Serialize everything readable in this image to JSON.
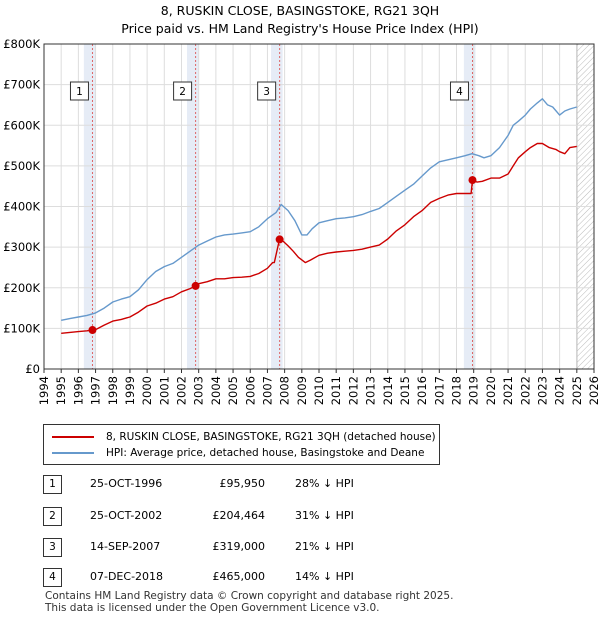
{
  "title": "8, RUSKIN CLOSE, BASINGSTOKE, RG21 3QH",
  "subtitle": "Price paid vs. HM Land Registry's House Price Index (HPI)",
  "chart_data": {
    "type": "line",
    "xlim": [
      1994,
      2026
    ],
    "ylim": [
      0,
      800000
    ],
    "x_ticks": [
      "1994",
      "1995",
      "1996",
      "1997",
      "1998",
      "1999",
      "2000",
      "2001",
      "2002",
      "2003",
      "2004",
      "2005",
      "2006",
      "2007",
      "2008",
      "2009",
      "2010",
      "2011",
      "2012",
      "2013",
      "2014",
      "2015",
      "2016",
      "2017",
      "2018",
      "2019",
      "2020",
      "2021",
      "2022",
      "2023",
      "2024",
      "2025",
      "2026"
    ],
    "y_ticks": [
      {
        "value": 0,
        "label": "£0"
      },
      {
        "value": 100000,
        "label": "£100K"
      },
      {
        "value": 200000,
        "label": "£200K"
      },
      {
        "value": 300000,
        "label": "£300K"
      },
      {
        "value": 400000,
        "label": "£400K"
      },
      {
        "value": 500000,
        "label": "£500K"
      },
      {
        "value": 600000,
        "label": "£600K"
      },
      {
        "value": 700000,
        "label": "£700K"
      },
      {
        "value": 800000,
        "label": "£800K"
      }
    ],
    "future_start": 2025.0,
    "series": [
      {
        "name": "8, RUSKIN CLOSE, BASINGSTOKE, RG21 3QH (detached house)",
        "color": "#cc0000",
        "x": [
          1995.0,
          1995.5,
          1996.0,
          1996.5,
          1996.82,
          1997.0,
          1997.5,
          1998.0,
          1998.5,
          1999.0,
          1999.5,
          2000.0,
          2000.5,
          2001.0,
          2001.5,
          2002.0,
          2002.5,
          2002.82,
          2003.0,
          2003.5,
          2004.0,
          2004.5,
          2005.0,
          2005.5,
          2006.0,
          2006.5,
          2007.0,
          2007.3,
          2007.4,
          2007.7,
          2007.9,
          2008.2,
          2008.5,
          2008.8,
          2009.2,
          2009.5,
          2010.0,
          2010.5,
          2011.0,
          2011.5,
          2012.0,
          2012.5,
          2013.0,
          2013.5,
          2014.0,
          2014.5,
          2015.0,
          2015.5,
          2016.0,
          2016.5,
          2017.0,
          2017.5,
          2018.0,
          2018.5,
          2018.85,
          2018.93,
          2019.2,
          2019.5,
          2020.0,
          2020.5,
          2021.0,
          2021.3,
          2021.6,
          2022.0,
          2022.3,
          2022.7,
          2023.0,
          2023.4,
          2023.8,
          2024.0,
          2024.3,
          2024.6,
          2025.0
        ],
        "values": [
          88000,
          90000,
          92000,
          94000,
          95950,
          97000,
          108000,
          118000,
          122000,
          128000,
          140000,
          155000,
          162000,
          172000,
          178000,
          190000,
          198000,
          204464,
          210000,
          215000,
          222000,
          222000,
          225000,
          226000,
          228000,
          235000,
          248000,
          262000,
          262000,
          319000,
          315000,
          303000,
          290000,
          275000,
          262000,
          268000,
          280000,
          285000,
          288000,
          290000,
          292000,
          295000,
          300000,
          305000,
          320000,
          340000,
          355000,
          375000,
          390000,
          410000,
          420000,
          428000,
          432000,
          432000,
          432000,
          465000,
          460000,
          462000,
          470000,
          470000,
          480000,
          500000,
          520000,
          535000,
          545000,
          555000,
          555000,
          545000,
          540000,
          535000,
          530000,
          545000,
          548000
        ]
      },
      {
        "name": "HPI: Average price, detached house, Basingstoke and Deane",
        "color": "#6699cc",
        "x": [
          1995.0,
          1995.5,
          1996.0,
          1996.5,
          1997.0,
          1997.5,
          1998.0,
          1998.5,
          1999.0,
          1999.5,
          2000.0,
          2000.5,
          2001.0,
          2001.5,
          2002.0,
          2002.5,
          2003.0,
          2003.5,
          2004.0,
          2004.5,
          2005.0,
          2005.5,
          2006.0,
          2006.5,
          2007.0,
          2007.5,
          2007.8,
          2008.2,
          2008.6,
          2009.0,
          2009.3,
          2009.6,
          2010.0,
          2010.5,
          2011.0,
          2011.5,
          2012.0,
          2012.5,
          2013.0,
          2013.5,
          2014.0,
          2014.5,
          2015.0,
          2015.5,
          2016.0,
          2016.5,
          2017.0,
          2017.5,
          2018.0,
          2018.5,
          2018.9,
          2019.3,
          2019.6,
          2020.0,
          2020.5,
          2021.0,
          2021.3,
          2021.6,
          2022.0,
          2022.3,
          2022.7,
          2023.0,
          2023.3,
          2023.6,
          2024.0,
          2024.3,
          2024.6,
          2025.0
        ],
        "values": [
          120000,
          124000,
          128000,
          132000,
          138000,
          150000,
          165000,
          172000,
          178000,
          195000,
          220000,
          240000,
          252000,
          260000,
          275000,
          290000,
          305000,
          315000,
          325000,
          330000,
          332000,
          335000,
          338000,
          350000,
          370000,
          385000,
          405000,
          390000,
          365000,
          330000,
          330000,
          345000,
          360000,
          365000,
          370000,
          372000,
          375000,
          380000,
          388000,
          395000,
          410000,
          425000,
          440000,
          455000,
          475000,
          495000,
          510000,
          515000,
          520000,
          525000,
          530000,
          525000,
          520000,
          525000,
          545000,
          575000,
          600000,
          610000,
          625000,
          640000,
          655000,
          665000,
          650000,
          645000,
          625000,
          635000,
          640000,
          645000
        ]
      }
    ],
    "transactions": [
      {
        "num": "1",
        "x": 1996.82,
        "value": 95950
      },
      {
        "num": "2",
        "x": 2002.82,
        "value": 204464
      },
      {
        "num": "3",
        "x": 2007.71,
        "value": 319000
      },
      {
        "num": "4",
        "x": 2018.93,
        "value": 465000
      }
    ]
  },
  "legend": {
    "property": "8, RUSKIN CLOSE, BASINGSTOKE, RG21 3QH (detached house)",
    "hpi": "HPI: Average price, detached house, Basingstoke and Deane"
  },
  "transactions_table": [
    {
      "num": "1",
      "date": "25-OCT-1996",
      "price": "£95,950",
      "hpi": "28% ↓ HPI"
    },
    {
      "num": "2",
      "date": "25-OCT-2002",
      "price": "£204,464",
      "hpi": "31% ↓ HPI"
    },
    {
      "num": "3",
      "date": "14-SEP-2007",
      "price": "£319,000",
      "hpi": "21% ↓ HPI"
    },
    {
      "num": "4",
      "date": "07-DEC-2018",
      "price": "£465,000",
      "hpi": "14% ↓ HPI"
    }
  ],
  "footer": {
    "line1": "Contains HM Land Registry data © Crown copyright and database right 2025.",
    "line2": "This data is licensed under the Open Government Licence v3.0."
  }
}
